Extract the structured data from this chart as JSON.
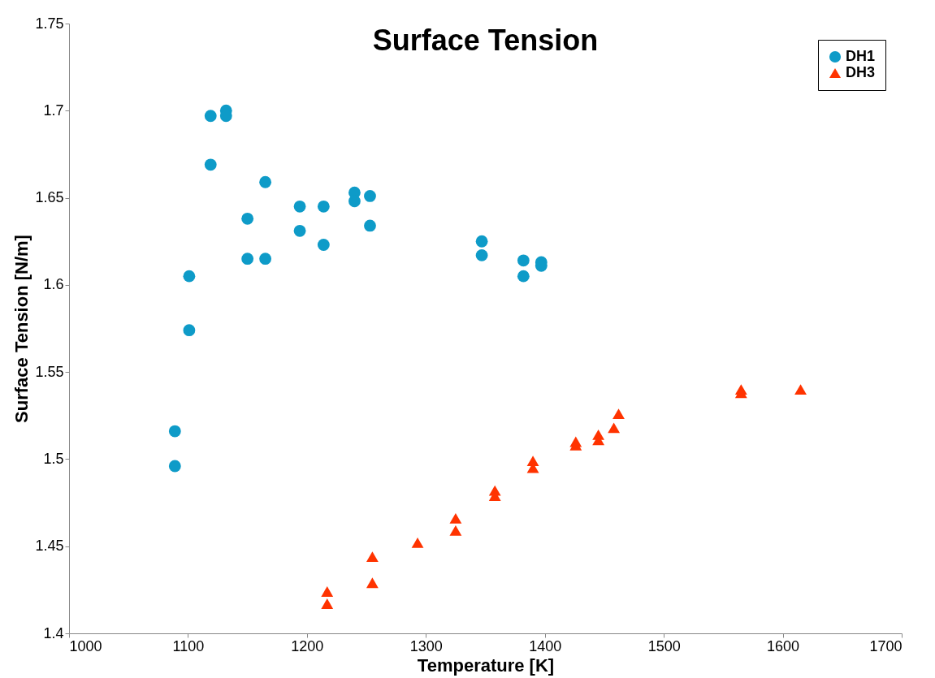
{
  "chart_data": {
    "type": "scatter",
    "title": "Surface Tension",
    "xlabel": "Temperature [K]",
    "ylabel": "Surface Tension [N/m]",
    "xlim": [
      1000,
      1700
    ],
    "xticks": [
      1000,
      1100,
      1200,
      1300,
      1400,
      1500,
      1600,
      1700
    ],
    "ylim": [
      1.4,
      1.75
    ],
    "yticks": [
      1.4,
      1.45,
      1.5,
      1.55,
      1.6,
      1.65,
      1.7,
      1.75
    ],
    "grid": false,
    "legend": "top right",
    "series": [
      {
        "name": "DH1",
        "color": "#0e9bc8",
        "marker": "circle",
        "x": [
          1089,
          1089,
          1101,
          1101,
          1119,
          1119,
          1132,
          1132,
          1150,
          1150,
          1165,
          1165,
          1194,
          1194,
          1214,
          1214,
          1240,
          1240,
          1253,
          1253,
          1347,
          1347,
          1382,
          1382,
          1397,
          1397
        ],
        "values": [
          1.496,
          1.516,
          1.574,
          1.605,
          1.697,
          1.669,
          1.7,
          1.697,
          1.638,
          1.615,
          1.659,
          1.615,
          1.645,
          1.631,
          1.645,
          1.623,
          1.653,
          1.648,
          1.651,
          1.634,
          1.625,
          1.617,
          1.614,
          1.605,
          1.613,
          1.611
        ]
      },
      {
        "name": "DH3",
        "color": "#ff3300",
        "marker": "triangle",
        "x": [
          1217,
          1217,
          1255,
          1255,
          1293,
          1325,
          1325,
          1358,
          1358,
          1390,
          1390,
          1426,
          1426,
          1445,
          1445,
          1458,
          1462,
          1565,
          1565,
          1615
        ],
        "values": [
          1.424,
          1.417,
          1.444,
          1.429,
          1.452,
          1.466,
          1.459,
          1.482,
          1.479,
          1.499,
          1.495,
          1.51,
          1.508,
          1.514,
          1.511,
          1.518,
          1.526,
          1.54,
          1.538,
          1.54
        ]
      }
    ]
  }
}
